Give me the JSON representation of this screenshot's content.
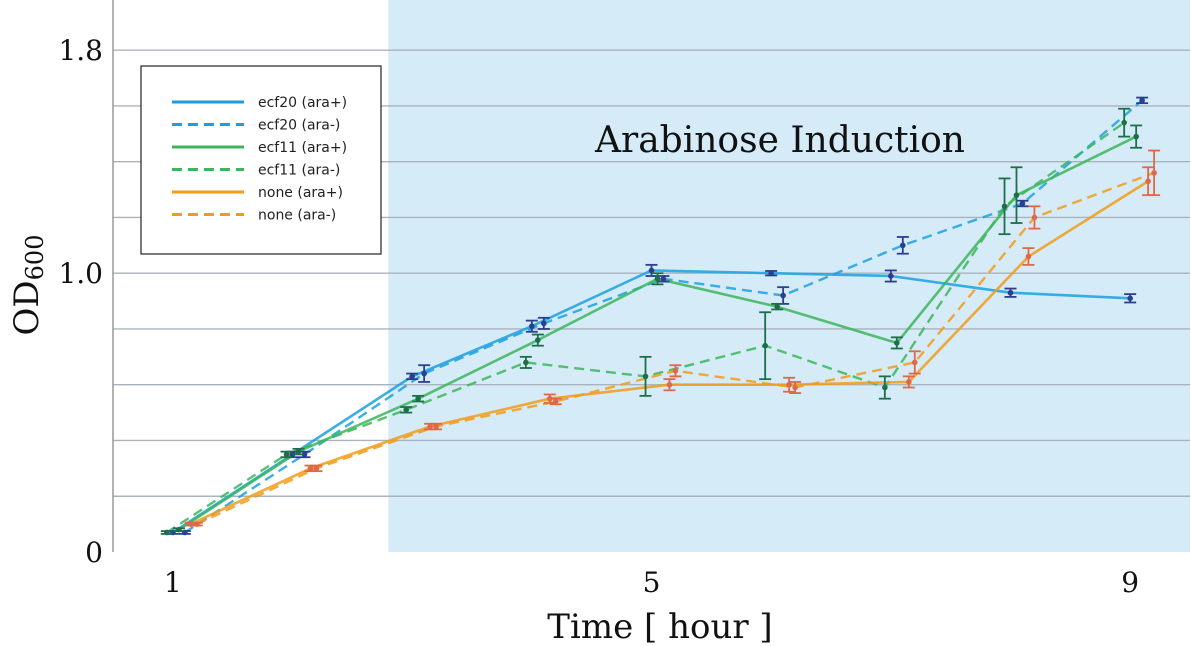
{
  "chart_data": {
    "type": "line",
    "xlabel": "Time  [ hour ]",
    "ylabel": "OD",
    "ylabel_sub": "600",
    "xlim": [
      0.5,
      9.5
    ],
    "ylim": [
      0,
      1.98
    ],
    "xticks": [
      {
        "value": 1,
        "label": "1"
      },
      {
        "value": 5,
        "label": "5"
      },
      {
        "value": 9,
        "label": "9"
      }
    ],
    "yticks": [
      {
        "value": 0,
        "label": "0"
      },
      {
        "value": 1.0,
        "label": "1.0"
      },
      {
        "value": 1.8,
        "label": "1.8"
      }
    ],
    "gridlines": [
      0.2,
      0.4,
      0.6,
      0.8,
      1.0,
      1.2,
      1.4,
      1.6,
      1.8
    ],
    "grid": "horizontal",
    "shaded_region": {
      "x_from": 2.8,
      "x_to": 9.5,
      "label": "Arabinose Induction",
      "color": "#d5ebf8"
    },
    "legend_position": "top-left",
    "series": [
      {
        "name": "ecf20 (ara+)",
        "color": "#1aa0e0",
        "dash": false,
        "marker_color": "#2a3f8f",
        "x": [
          1.0,
          2.0,
          3.0,
          4.0,
          5.0,
          6.0,
          7.0,
          8.0,
          9.0
        ],
        "y": [
          0.07,
          0.35,
          0.63,
          0.81,
          1.01,
          1.0,
          0.99,
          0.93,
          0.91
        ],
        "err": [
          0.005,
          0.01,
          0.01,
          0.02,
          0.02,
          0.008,
          0.02,
          0.015,
          0.015
        ]
      },
      {
        "name": "ecf20 (ara-)",
        "color": "#1aa0e0",
        "dash": true,
        "marker_color": "#2a3f8f",
        "x": [
          1.1,
          2.1,
          3.1,
          4.1,
          5.1,
          6.1,
          7.1,
          8.1,
          9.1
        ],
        "y": [
          0.07,
          0.35,
          0.64,
          0.82,
          0.98,
          0.92,
          1.1,
          1.25,
          1.62
        ],
        "err": [
          0.005,
          0.01,
          0.03,
          0.02,
          0.01,
          0.03,
          0.03,
          0.01,
          0.01
        ]
      },
      {
        "name": "ecf11 (ara+)",
        "color": "#3cb65a",
        "dash": false,
        "marker_color": "#1e6e4a",
        "x": [
          1.05,
          2.05,
          3.05,
          4.05,
          5.05,
          6.05,
          7.05,
          8.05,
          9.05
        ],
        "y": [
          0.08,
          0.36,
          0.55,
          0.76,
          0.98,
          0.88,
          0.75,
          1.28,
          1.49
        ],
        "err": [
          0.005,
          0.01,
          0.01,
          0.02,
          0.02,
          0.01,
          0.02,
          0.1,
          0.04
        ]
      },
      {
        "name": "ecf11 (ara-)",
        "color": "#3cb65a",
        "dash": true,
        "marker_color": "#1e6e4a",
        "x": [
          0.95,
          1.95,
          2.95,
          3.95,
          4.95,
          5.95,
          6.95,
          7.95,
          8.95
        ],
        "y": [
          0.07,
          0.35,
          0.51,
          0.68,
          0.63,
          0.74,
          0.59,
          1.24,
          1.54
        ],
        "err": [
          0.005,
          0.01,
          0.01,
          0.02,
          0.07,
          0.12,
          0.04,
          0.1,
          0.05
        ]
      },
      {
        "name": "none (ara+)",
        "color": "#f29b18",
        "dash": false,
        "marker_color": "#e06848",
        "x": [
          1.15,
          2.15,
          3.15,
          4.15,
          5.15,
          6.15,
          7.15,
          8.15,
          9.15
        ],
        "y": [
          0.1,
          0.3,
          0.45,
          0.55,
          0.6,
          0.6,
          0.61,
          1.06,
          1.33
        ],
        "err": [
          0.005,
          0.01,
          0.01,
          0.015,
          0.02,
          0.025,
          0.02,
          0.03,
          0.05
        ]
      },
      {
        "name": "none (ara-)",
        "color": "#f29b18",
        "dash": true,
        "marker_color": "#e06848",
        "x": [
          1.2,
          2.2,
          3.2,
          4.2,
          5.2,
          6.2,
          7.2,
          8.2,
          9.2
        ],
        "y": [
          0.1,
          0.3,
          0.45,
          0.54,
          0.65,
          0.59,
          0.68,
          1.2,
          1.36
        ],
        "err": [
          0.005,
          0.01,
          0.01,
          0.01,
          0.02,
          0.02,
          0.04,
          0.04,
          0.08
        ]
      }
    ]
  }
}
